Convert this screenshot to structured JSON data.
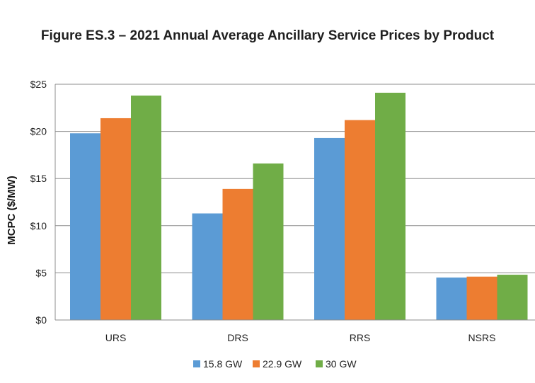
{
  "chart_data": {
    "type": "bar",
    "title": "Figure ES.3 – 2021 Annual Average Ancillary Service Prices by Product",
    "xlabel": "",
    "ylabel": "MCPC ($/MW)",
    "categories": [
      "URS",
      "DRS",
      "RRS",
      "NSRS"
    ],
    "series": [
      {
        "name": "15.8 GW",
        "color": "#5b9bd5",
        "values": [
          19.8,
          11.3,
          19.3,
          4.5
        ]
      },
      {
        "name": "22.9 GW",
        "color": "#ed7d31",
        "values": [
          21.4,
          13.9,
          21.2,
          4.6
        ]
      },
      {
        "name": "30 GW",
        "color": "#70ad47",
        "values": [
          23.8,
          16.6,
          24.1,
          4.8
        ]
      }
    ],
    "ylim": [
      0,
      25
    ],
    "yticks": [
      0,
      5,
      10,
      15,
      20,
      25
    ],
    "ytick_labels": [
      "$0",
      "$5",
      "$10",
      "$15",
      "$20",
      "$25"
    ],
    "grid": true,
    "legend_position": "bottom"
  }
}
